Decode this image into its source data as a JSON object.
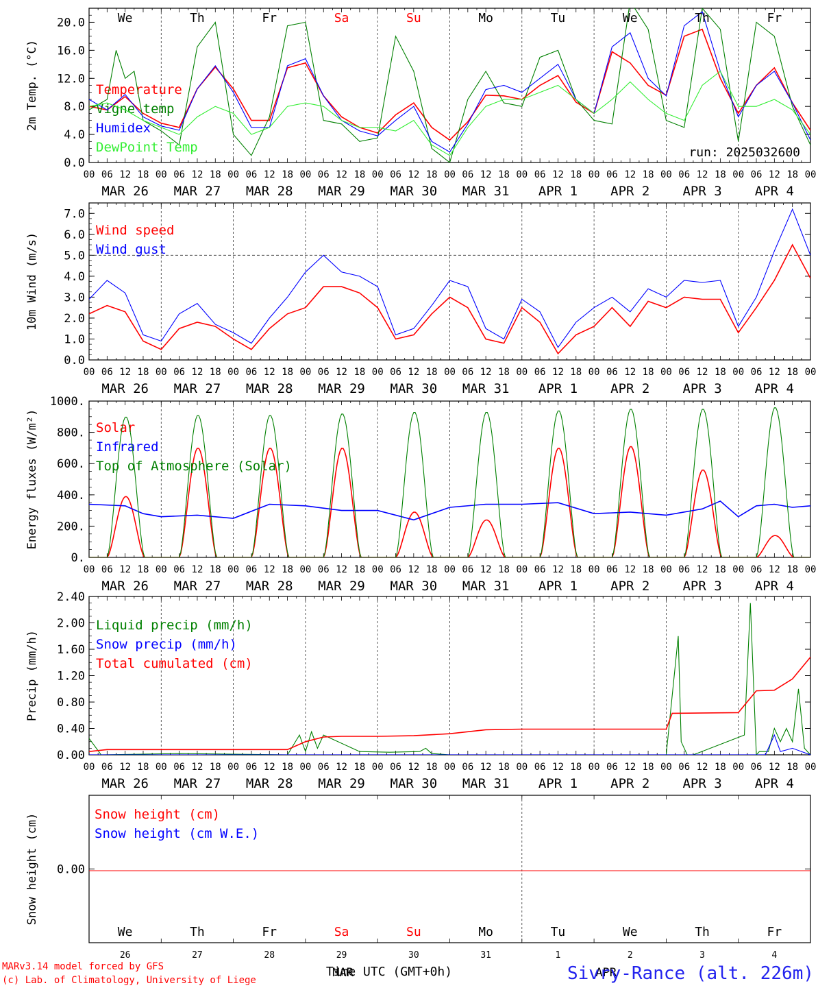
{
  "meta": {
    "run": "run: 2025032600",
    "credit_lines": [
      "MARv3.14 model forced by GFS",
      "(c) Lab. of Climatology, University of Liege"
    ],
    "xlabel": "Time UTC (GMT+0h)",
    "station": "Sivry-Rance (alt. 226m)",
    "month_labels": [
      "MAR",
      "APR"
    ],
    "colors": {
      "red": "#ff0000",
      "green": "#008000",
      "blue": "#0000ff",
      "lightgreen": "#33ee33",
      "weekend": "#ff0000"
    }
  },
  "time_axis": {
    "days": [
      "MAR 26",
      "MAR 27",
      "MAR 28",
      "MAR 29",
      "MAR 30",
      "MAR 31",
      "APR 1",
      "APR 2",
      "APR 3",
      "APR 4"
    ],
    "weekdays": [
      "We",
      "Th",
      "Fr",
      "Sa",
      "Su",
      "Mo",
      "Tu",
      "We",
      "Th",
      "Fr"
    ],
    "weekend_index": [
      3,
      4
    ],
    "day_numbers": [
      "26",
      "27",
      "28",
      "29",
      "30",
      "31",
      "1",
      "2",
      "3",
      "4"
    ],
    "hour_ticks": [
      "00",
      "06",
      "12",
      "18"
    ],
    "last_tick": "00"
  },
  "chart_data": [
    {
      "type": "line",
      "ylabel": "2m Temp. (°C)",
      "ylim": [
        0,
        22
      ],
      "yticks": [
        "0.0",
        "4.0",
        "8.0",
        "12.0",
        "16.0",
        "20.0"
      ],
      "yticks_values": [
        0,
        4,
        8,
        12,
        16,
        20
      ],
      "x_unit": "hours since 2025-03-26 00 UTC",
      "series": [
        {
          "name": "Temperature",
          "color": "#ff0000",
          "x": [
            0,
            6,
            12,
            18,
            24,
            30,
            36,
            42,
            48,
            54,
            60,
            66,
            72,
            78,
            84,
            90,
            96,
            102,
            108,
            114,
            120,
            126,
            132,
            138,
            144,
            150,
            156,
            162,
            168,
            174,
            180,
            186,
            192,
            198,
            204,
            210,
            216,
            222,
            228,
            234,
            240
          ],
          "y": [
            8.0,
            7.5,
            9.4,
            7.0,
            5.6,
            5.0,
            10.5,
            13.6,
            10.5,
            6.0,
            6.0,
            13.5,
            14.2,
            9.5,
            6.5,
            5.0,
            4.2,
            6.8,
            8.5,
            5.0,
            3.2,
            5.8,
            9.6,
            9.5,
            9.0,
            11.0,
            12.4,
            8.6,
            7.0,
            15.8,
            14.2,
            11.0,
            9.6,
            18.0,
            19.0,
            12.0,
            7.0,
            11.0,
            13.5,
            8.5,
            4.6
          ]
        },
        {
          "name": "Vigne temp",
          "color": "#008000",
          "x": [
            0,
            6,
            9,
            12,
            15,
            18,
            24,
            30,
            36,
            42,
            48,
            54,
            60,
            66,
            72,
            78,
            84,
            90,
            96,
            102,
            108,
            114,
            120,
            126,
            132,
            138,
            144,
            150,
            156,
            162,
            168,
            174,
            180,
            186,
            192,
            198,
            204,
            210,
            216,
            222,
            228,
            234,
            240
          ],
          "y": [
            7.5,
            9.0,
            16.0,
            12.0,
            13.0,
            6.0,
            4.5,
            2.5,
            16.5,
            20.0,
            4.0,
            1.0,
            6.5,
            19.5,
            20.0,
            6.0,
            5.5,
            3.0,
            3.5,
            18.0,
            13.0,
            2.0,
            0.0,
            9.0,
            13.0,
            8.5,
            8.0,
            15.0,
            16.0,
            9.0,
            6.0,
            5.5,
            23.0,
            19.0,
            6.0,
            5.0,
            22.0,
            19.0,
            3.0,
            20.0,
            18.0,
            8.0,
            2.5
          ]
        },
        {
          "name": "Humidex",
          "color": "#0000ff",
          "x": [
            0,
            6,
            12,
            18,
            24,
            30,
            36,
            42,
            48,
            54,
            60,
            66,
            72,
            78,
            84,
            90,
            96,
            102,
            108,
            114,
            120,
            126,
            132,
            138,
            144,
            150,
            156,
            162,
            168,
            174,
            180,
            186,
            192,
            198,
            204,
            210,
            216,
            222,
            228,
            234,
            240
          ],
          "y": [
            9.0,
            7.5,
            9.7,
            6.5,
            5.2,
            4.6,
            10.5,
            13.8,
            10.0,
            5.0,
            5.0,
            13.8,
            14.8,
            9.5,
            6.0,
            4.5,
            3.8,
            6.0,
            8.0,
            3.0,
            1.5,
            5.5,
            10.4,
            11.0,
            10.0,
            12.0,
            14.0,
            9.0,
            7.0,
            16.5,
            18.5,
            12.0,
            9.5,
            19.5,
            21.5,
            13.0,
            6.5,
            11.0,
            13.0,
            8.5,
            3.2
          ]
        },
        {
          "name": "DewPoint Temp",
          "color": "#33ee33",
          "x": [
            0,
            6,
            12,
            18,
            24,
            30,
            36,
            42,
            48,
            54,
            60,
            66,
            72,
            78,
            84,
            90,
            96,
            102,
            108,
            114,
            120,
            126,
            132,
            138,
            144,
            150,
            156,
            162,
            168,
            174,
            180,
            186,
            192,
            198,
            204,
            210,
            216,
            222,
            228,
            234,
            240
          ],
          "y": [
            8.0,
            8.5,
            7.5,
            6.0,
            5.0,
            4.0,
            6.5,
            8.0,
            7.0,
            4.0,
            5.0,
            8.0,
            8.5,
            8.0,
            6.0,
            5.0,
            5.0,
            4.5,
            6.0,
            2.5,
            1.0,
            5.0,
            8.0,
            9.0,
            9.0,
            10.0,
            11.0,
            9.0,
            7.0,
            9.0,
            11.5,
            9.0,
            7.0,
            6.0,
            11.0,
            13.0,
            8.0,
            8.0,
            9.0,
            7.5,
            4.0
          ]
        }
      ]
    },
    {
      "type": "line",
      "ylabel": "10m Wind (m/s)",
      "ylim": [
        0,
        7.5
      ],
      "yticks": [
        "0.0",
        "1.0",
        "2.0",
        "3.0",
        "4.0",
        "5.0",
        "6.0",
        "7.0"
      ],
      "yticks_values": [
        0,
        1,
        2,
        3,
        4,
        5,
        6,
        7
      ],
      "reference_line": 5.0,
      "x_unit": "hours since 2025-03-26 00 UTC",
      "series": [
        {
          "name": "Wind speed",
          "color": "#ff0000",
          "x": [
            0,
            6,
            12,
            18,
            24,
            30,
            36,
            42,
            48,
            54,
            60,
            66,
            72,
            78,
            84,
            90,
            96,
            102,
            108,
            114,
            120,
            126,
            132,
            138,
            144,
            150,
            156,
            162,
            168,
            174,
            180,
            186,
            192,
            198,
            204,
            210,
            216,
            222,
            228,
            234,
            240
          ],
          "y": [
            2.2,
            2.6,
            2.3,
            0.9,
            0.5,
            1.5,
            1.8,
            1.6,
            1.0,
            0.5,
            1.5,
            2.2,
            2.5,
            3.5,
            3.5,
            3.2,
            2.5,
            1.0,
            1.2,
            2.2,
            3.0,
            2.5,
            1.0,
            0.8,
            2.5,
            1.8,
            0.3,
            1.2,
            1.6,
            2.5,
            1.6,
            2.8,
            2.5,
            3.0,
            2.9,
            2.9,
            1.3,
            2.5,
            3.8,
            5.5,
            3.9
          ]
        },
        {
          "name": "Wind gust",
          "color": "#0000ff",
          "x": [
            0,
            6,
            12,
            18,
            24,
            30,
            36,
            42,
            48,
            54,
            60,
            66,
            72,
            78,
            84,
            90,
            96,
            102,
            108,
            114,
            120,
            126,
            132,
            138,
            144,
            150,
            156,
            162,
            168,
            174,
            180,
            186,
            192,
            198,
            204,
            210,
            216,
            222,
            228,
            234,
            240
          ],
          "y": [
            2.9,
            3.8,
            3.2,
            1.2,
            0.9,
            2.2,
            2.7,
            1.7,
            1.3,
            0.8,
            2.0,
            3.0,
            4.2,
            5.0,
            4.2,
            4.0,
            3.5,
            1.2,
            1.5,
            2.6,
            3.8,
            3.5,
            1.5,
            1.0,
            2.9,
            2.3,
            0.6,
            1.8,
            2.5,
            3.0,
            2.3,
            3.4,
            3.0,
            3.8,
            3.7,
            3.8,
            1.6,
            3.0,
            5.2,
            7.2,
            5.0
          ]
        }
      ]
    },
    {
      "type": "line",
      "ylabel": "Energy fluxes (W/m²)",
      "ylim": [
        0,
        1000
      ],
      "yticks": [
        "0.",
        "200.",
        "400.",
        "600.",
        "800.",
        "1000."
      ],
      "yticks_values": [
        0,
        200,
        400,
        600,
        800,
        1000
      ],
      "x_unit": "hours since 2025-03-26 00 UTC",
      "series": [
        {
          "name": "Solar",
          "color": "#ff0000",
          "daily_peak": [
            390,
            700,
            700,
            700,
            290,
            240,
            700,
            710,
            560,
            140
          ]
        },
        {
          "name": "Infrared",
          "color": "#0000ff",
          "x": [
            0,
            12,
            18,
            24,
            36,
            48,
            60,
            72,
            84,
            96,
            108,
            120,
            132,
            144,
            156,
            168,
            180,
            192,
            204,
            210,
            216,
            222,
            228,
            234,
            240
          ],
          "y": [
            340,
            330,
            280,
            260,
            270,
            250,
            340,
            330,
            300,
            300,
            240,
            320,
            340,
            340,
            350,
            280,
            290,
            270,
            310,
            360,
            260,
            330,
            340,
            320,
            330
          ]
        },
        {
          "name": "Top of Atmosphere (Solar)",
          "color": "#008000",
          "daily_peak": [
            900,
            910,
            910,
            920,
            930,
            930,
            940,
            950,
            950,
            960
          ]
        }
      ]
    },
    {
      "type": "line",
      "ylabel": "Precip (mm/h)",
      "ylim": [
        0,
        2.4
      ],
      "yticks": [
        "0.00",
        "0.40",
        "0.80",
        "1.20",
        "1.60",
        "2.00",
        "2.40"
      ],
      "yticks_values": [
        0,
        0.4,
        0.8,
        1.2,
        1.6,
        2.0,
        2.4
      ],
      "x_unit": "hours since 2025-03-26 00 UTC",
      "series": [
        {
          "name": "Liquid precip (mm/h)",
          "color": "#008000",
          "x": [
            0,
            4,
            30,
            66,
            70,
            72,
            74,
            76,
            78,
            90,
            100,
            110,
            112,
            114,
            120,
            168,
            192,
            196,
            197,
            199,
            201,
            218,
            220,
            222,
            223,
            226,
            228,
            230,
            232,
            234,
            236,
            238,
            240
          ],
          "y": [
            0.25,
            0,
            0.02,
            0.0,
            0.3,
            0.05,
            0.35,
            0.1,
            0.3,
            0.05,
            0.04,
            0.05,
            0.1,
            0.02,
            0.0,
            0.0,
            0.0,
            1.8,
            0.2,
            0.0,
            0.0,
            0.3,
            2.3,
            0.0,
            0.05,
            0.05,
            0.4,
            0.2,
            0.4,
            0.2,
            1.0,
            0.1,
            0.0
          ]
        },
        {
          "name": "Snow precip (mm/h)",
          "color": "#0000ff",
          "x": [
            0,
            225,
            228,
            230,
            234,
            240
          ],
          "y": [
            0,
            0,
            0.3,
            0.05,
            0.1,
            0
          ]
        },
        {
          "name": "Total cumulated (cm)",
          "color": "#ff0000",
          "x": [
            0,
            6,
            24,
            48,
            66,
            72,
            78,
            84,
            96,
            108,
            120,
            132,
            144,
            168,
            192,
            194,
            216,
            222,
            228,
            234,
            240
          ],
          "y": [
            0.05,
            0.08,
            0.08,
            0.08,
            0.08,
            0.2,
            0.27,
            0.28,
            0.28,
            0.29,
            0.32,
            0.38,
            0.39,
            0.39,
            0.39,
            0.63,
            0.64,
            0.97,
            0.98,
            1.15,
            1.48
          ]
        }
      ]
    },
    {
      "type": "line",
      "ylabel": "Snow height (cm)",
      "yticks": [
        "0.00"
      ],
      "yticks_values": [
        0
      ],
      "x_unit": "hours since 2025-03-26 00 UTC",
      "series": [
        {
          "name": "Snow height (cm)",
          "color": "#ff0000",
          "x": [
            0,
            240
          ],
          "y": [
            0,
            0
          ]
        },
        {
          "name": "Snow height (cm W.E.)",
          "color": "#0000ff",
          "x": [
            0,
            240
          ],
          "y": [
            0,
            0
          ]
        }
      ]
    }
  ]
}
